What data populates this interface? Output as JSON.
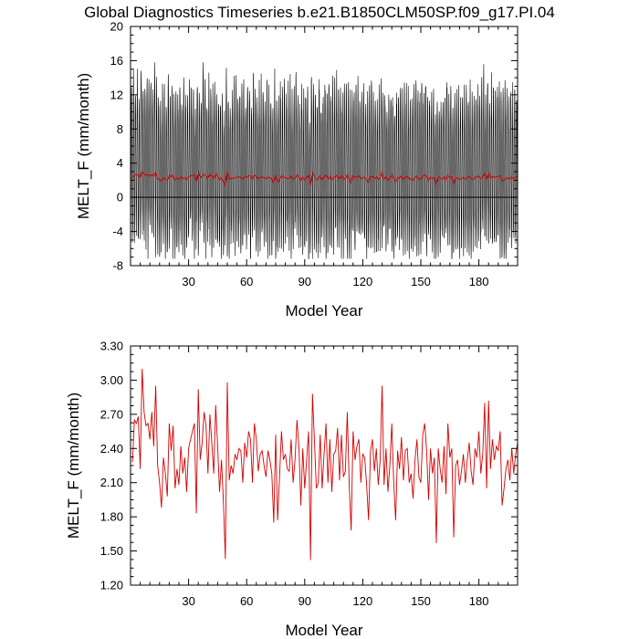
{
  "title": "Global Diagnostics Timeseries b.e21.B1850CLM50SP.f09_g17.PI.04",
  "colors": {
    "monthly": "#000000",
    "annual": "#d40000",
    "zero_line": "#000000"
  },
  "chart_data": [
    {
      "type": "line",
      "xlabel": "Model Year",
      "ylabel": "MELT_F (mm/month)",
      "xlim": [
        0,
        200
      ],
      "ylim": [
        -8,
        20
      ],
      "x_ticks": [
        30,
        60,
        90,
        120,
        150,
        180
      ],
      "x_tick_labels": [
        "30",
        "60",
        "90",
        "120",
        "150",
        "180"
      ],
      "y_ticks": [
        -8,
        -4,
        0,
        4,
        8,
        12,
        16,
        20
      ],
      "y_tick_labels": [
        "-8",
        "-4",
        "0",
        "4",
        "8",
        "12",
        "16",
        "20"
      ],
      "zero_line": true,
      "series": [
        {
          "kind": "monthly",
          "color": "#000000",
          "generated_from": "annual",
          "peak_typical": 12.5,
          "trough_typical": -5.5,
          "peak_max": 15.8,
          "trough_min": -7.2
        },
        {
          "kind": "annual_mean",
          "color": "#d40000",
          "source": "annual"
        }
      ]
    },
    {
      "type": "line",
      "xlabel": "Model Year",
      "ylabel": "MELT_F (mm/month)",
      "xlim": [
        0,
        200
      ],
      "ylim": [
        1.2,
        3.3
      ],
      "x_ticks": [
        30,
        60,
        90,
        120,
        150,
        180
      ],
      "x_tick_labels": [
        "30",
        "60",
        "90",
        "120",
        "150",
        "180"
      ],
      "y_ticks": [
        1.2,
        1.5,
        1.8,
        2.1,
        2.4,
        2.7,
        3.0,
        3.3
      ],
      "y_tick_labels": [
        "1.20",
        "1.50",
        "1.80",
        "2.10",
        "2.40",
        "2.70",
        "3.00",
        "3.30"
      ],
      "series": [
        {
          "kind": "annual_mean",
          "color": "#d40000",
          "x_start": 1,
          "values": [
            2.28,
            2.65,
            2.62,
            2.68,
            2.22,
            3.1,
            2.72,
            2.6,
            2.62,
            2.48,
            2.72,
            2.42,
            2.95,
            2.25,
            2.1,
            1.88,
            2.32,
            2.18,
            1.98,
            2.62,
            2.38,
            2.6,
            2.05,
            2.22,
            2.08,
            2.42,
            2.18,
            2.32,
            2.02,
            2.4,
            2.48,
            2.55,
            2.62,
            1.83,
            2.92,
            2.3,
            2.45,
            2.72,
            2.6,
            2.18,
            2.7,
            2.45,
            2.18,
            2.78,
            2.42,
            2.02,
            2.3,
            1.93,
            1.43,
            2.98,
            2.12,
            2.25,
            2.18,
            2.35,
            2.3,
            2.4,
            2.38,
            2.1,
            2.45,
            2.32,
            2.55,
            2.48,
            2.1,
            2.62,
            2.48,
            2.2,
            2.35,
            2.38,
            2.25,
            2.15,
            2.38,
            2.3,
            2.18,
            1.75,
            2.52,
            1.77,
            2.15,
            2.55,
            2.3,
            2.35,
            2.22,
            2.2,
            2.48,
            2.1,
            2.3,
            2.65,
            2.42,
            1.9,
            2.4,
            2.05,
            2.3,
            2.55,
            1.42,
            2.88,
            2.48,
            2.05,
            2.1,
            2.52,
            2.05,
            2.35,
            2.62,
            2.1,
            2.48,
            2.02,
            2.35,
            2.38,
            2.58,
            2.12,
            2.52,
            2.15,
            2.2,
            2.72,
            2.08,
            1.68,
            2.55,
            2.3,
            2.42,
            2.48,
            2.1,
            2.35,
            2.32,
            2.08,
            1.77,
            2.38,
            2.48,
            2.2,
            2.4,
            2.08,
            2.3,
            2.95,
            2.08,
            2.4,
            2.02,
            2.25,
            2.62,
            2.1,
            1.77,
            2.38,
            2.22,
            2.5,
            2.12,
            2.38,
            2.4,
            2.1,
            2.18,
            1.96,
            2.3,
            2.48,
            2.15,
            2.1,
            2.52,
            2.62,
            2.38,
            1.95,
            2.4,
            2.18,
            2.32,
            1.57,
            2.4,
            2.22,
            2.1,
            2.42,
            2.0,
            2.62,
            2.32,
            2.4,
            1.62,
            2.25,
            2.3,
            2.08,
            2.2,
            2.35,
            2.1,
            2.3,
            2.45,
            2.2,
            2.08,
            2.4,
            2.32,
            2.55,
            2.18,
            2.35,
            2.8,
            2.05,
            2.82,
            2.22,
            2.48,
            2.3,
            2.42,
            2.38,
            2.55,
            1.9,
            2.05,
            2.22,
            2.3,
            2.12,
            2.4,
            2.18,
            2.35,
            2.45,
            2.28,
            2.2
          ]
        }
      ]
    }
  ]
}
